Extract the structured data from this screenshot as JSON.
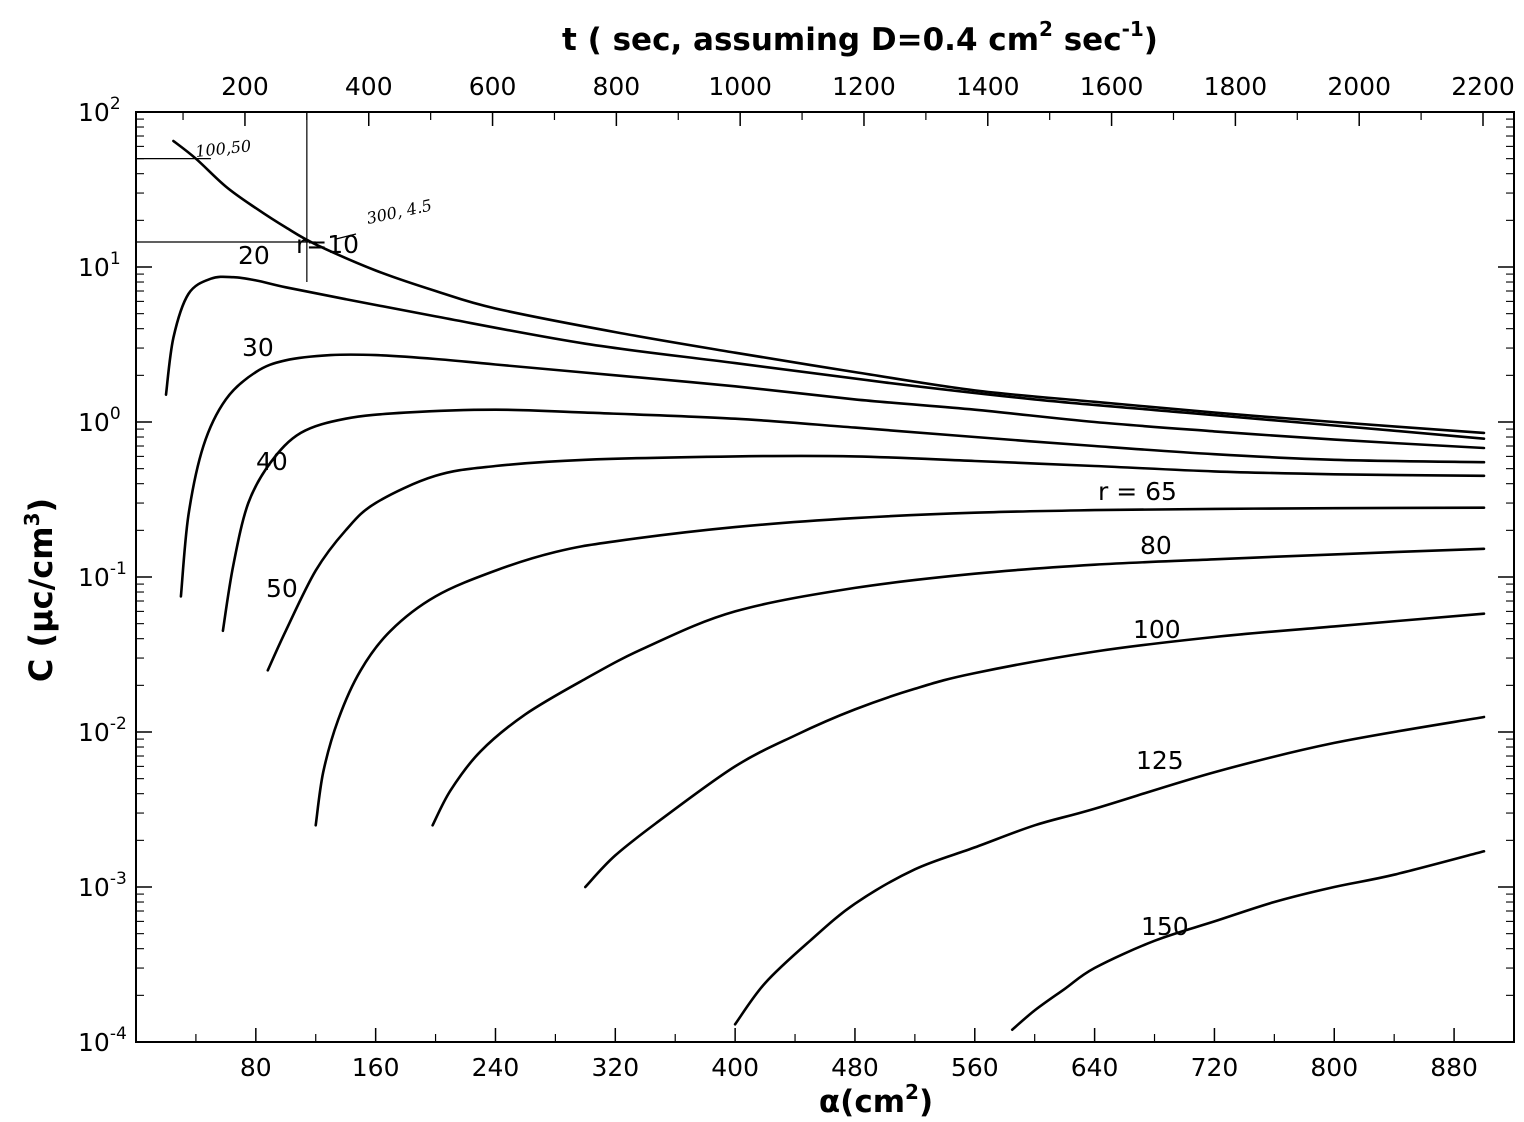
{
  "chart_data": {
    "type": "line",
    "title": "",
    "xlabel_bottom": {
      "main": "α(cm",
      "sup": "2",
      "end": ")"
    },
    "xlabel_top": {
      "pre": "t ( sec, assuming D=0.4 cm",
      "sup1": "2",
      "mid": " sec",
      "sup2": "-1",
      "end": ")"
    },
    "ylabel": {
      "pre": "C (μc/cm",
      "sup": "3",
      "end": ")"
    },
    "x_scale": "linear",
    "y_scale": "log",
    "xlim": [
      0,
      920
    ],
    "ylim": [
      0.0001,
      100
    ],
    "x_ticks_bottom": [
      80,
      160,
      240,
      320,
      400,
      480,
      560,
      640,
      720,
      800,
      880
    ],
    "x_ticks_top": [
      200,
      400,
      600,
      800,
      1000,
      1200,
      1400,
      1600,
      1800,
      2000,
      2200
    ],
    "y_ticks": [
      {
        "base": "10",
        "exp": "-4"
      },
      {
        "base": "10",
        "exp": "-3"
      },
      {
        "base": "10",
        "exp": "-2"
      },
      {
        "base": "10",
        "exp": "-1"
      },
      {
        "base": "10",
        "exp": "0"
      },
      {
        "base": "10",
        "exp": "1"
      },
      {
        "base": "10",
        "exp": "2"
      }
    ],
    "grid": false,
    "legend": "none",
    "series": [
      {
        "name": "r=10",
        "x": [
          25,
          40,
          60,
          80,
          100,
          120,
          160,
          200,
          240,
          320,
          400,
          480,
          560,
          640,
          720,
          800,
          900
        ],
        "y": [
          65,
          50,
          33,
          24,
          18,
          14,
          9.5,
          7,
          5.4,
          3.8,
          2.8,
          2.1,
          1.6,
          1.35,
          1.15,
          1.0,
          0.85
        ]
      },
      {
        "name": "20",
        "x": [
          20,
          25,
          35,
          50,
          65,
          80,
          100,
          140,
          200,
          300,
          400,
          500,
          600,
          700,
          800,
          900
        ],
        "y": [
          1.5,
          3.5,
          6.7,
          8.4,
          8.6,
          8.2,
          7.4,
          6.2,
          4.8,
          3.2,
          2.4,
          1.8,
          1.4,
          1.15,
          0.95,
          0.78
        ]
      },
      {
        "name": "30",
        "x": [
          30,
          35,
          45,
          60,
          80,
          100,
          130,
          160,
          200,
          240,
          320,
          400,
          480,
          560,
          640,
          720,
          800,
          900
        ],
        "y": [
          0.075,
          0.25,
          0.7,
          1.4,
          2.1,
          2.5,
          2.7,
          2.7,
          2.55,
          2.35,
          2.0,
          1.7,
          1.4,
          1.2,
          1.0,
          0.87,
          0.77,
          0.68
        ]
      },
      {
        "name": "40",
        "x": [
          58,
          65,
          75,
          90,
          110,
          140,
          180,
          240,
          300,
          400,
          480,
          560,
          640,
          720,
          800,
          900
        ],
        "y": [
          0.045,
          0.12,
          0.3,
          0.55,
          0.85,
          1.05,
          1.15,
          1.2,
          1.15,
          1.05,
          0.92,
          0.8,
          0.7,
          0.62,
          0.57,
          0.55
        ]
      },
      {
        "name": "50",
        "x": [
          88,
          100,
          120,
          140,
          160,
          200,
          240,
          300,
          400,
          480,
          560,
          640,
          720,
          800,
          900
        ],
        "y": [
          0.025,
          0.045,
          0.11,
          0.2,
          0.3,
          0.45,
          0.52,
          0.57,
          0.6,
          0.6,
          0.56,
          0.52,
          0.48,
          0.46,
          0.45
        ]
      },
      {
        "name": "r = 65",
        "x": [
          120,
          125,
          135,
          150,
          170,
          200,
          240,
          280,
          320,
          400,
          480,
          560,
          640,
          720,
          800,
          900
        ],
        "y": [
          0.0025,
          0.0055,
          0.012,
          0.025,
          0.045,
          0.075,
          0.11,
          0.145,
          0.17,
          0.21,
          0.24,
          0.26,
          0.27,
          0.275,
          0.278,
          0.28
        ]
      },
      {
        "name": "80",
        "x": [
          198,
          210,
          230,
          260,
          300,
          340,
          400,
          480,
          560,
          640,
          720,
          800,
          900
        ],
        "y": [
          0.0025,
          0.0042,
          0.0075,
          0.013,
          0.022,
          0.035,
          0.06,
          0.085,
          0.105,
          0.12,
          0.13,
          0.14,
          0.152
        ]
      },
      {
        "name": "100",
        "x": [
          300,
          320,
          350,
          400,
          440,
          480,
          520,
          560,
          640,
          720,
          800,
          900
        ],
        "y": [
          0.001,
          0.0016,
          0.0027,
          0.006,
          0.0095,
          0.014,
          0.019,
          0.024,
          0.033,
          0.041,
          0.048,
          0.058
        ]
      },
      {
        "name": "125",
        "x": [
          400,
          420,
          450,
          480,
          520,
          560,
          600,
          640,
          720,
          800,
          900
        ],
        "y": [
          0.00013,
          0.00024,
          0.00045,
          0.00078,
          0.0013,
          0.0018,
          0.0025,
          0.0032,
          0.0055,
          0.0085,
          0.0125
        ]
      },
      {
        "name": "150",
        "x": [
          585,
          600,
          620,
          640,
          680,
          720,
          760,
          800,
          840,
          900
        ],
        "y": [
          0.00012,
          0.00016,
          0.00022,
          0.0003,
          0.00045,
          0.0006,
          0.0008,
          0.001,
          0.0012,
          0.0017
        ]
      }
    ],
    "annotations": [
      {
        "text": "100,50",
        "x": 100,
        "y": 50
      },
      {
        "text": "300, 4.5",
        "x": 300,
        "y": 4.5
      }
    ]
  }
}
